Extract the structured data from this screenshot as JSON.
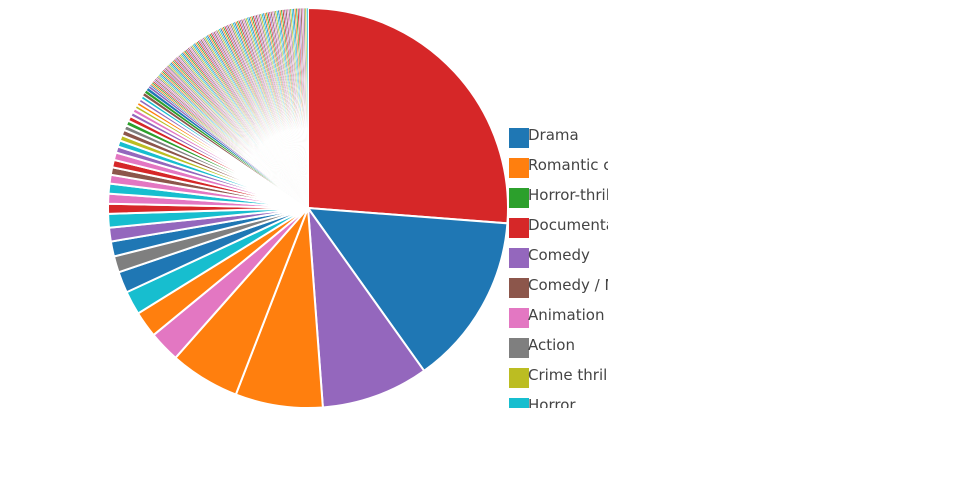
{
  "chart_data": {
    "type": "pie",
    "direction": "clockwise",
    "start": "12 o'clock",
    "slices": [
      {
        "label": "Documentary",
        "value": 26.0,
        "color": "#d62728"
      },
      {
        "label": "Drama",
        "value": 13.8,
        "color": "#1f77b4"
      },
      {
        "label": "Comedy",
        "value": 8.6,
        "color": "#9467bd"
      },
      {
        "label": "Romantic comedy",
        "value": 7.0,
        "color": "#ff7f0e"
      },
      {
        "label": "",
        "value": 5.6,
        "color": "#ff7f0e"
      },
      {
        "label": "",
        "value": 2.5,
        "color": "#e377c2"
      },
      {
        "label": "",
        "value": 2.1,
        "color": "#ff7f0e"
      },
      {
        "label": "",
        "value": 1.9,
        "color": "#17becf"
      },
      {
        "label": "",
        "value": 1.7,
        "color": "#1f77b4"
      },
      {
        "label": "",
        "value": 1.3,
        "color": "#7f7f7f"
      },
      {
        "label": "",
        "value": 1.2,
        "color": "#1f77b4"
      },
      {
        "label": "",
        "value": 1.1,
        "color": "#9467bd"
      },
      {
        "label": "",
        "value": 1.1,
        "color": "#17becf"
      },
      {
        "label": "",
        "value": 0.8,
        "color": "#d62728"
      },
      {
        "label": "",
        "value": 0.8,
        "color": "#e377c2"
      },
      {
        "label": "",
        "value": 0.8,
        "color": "#17becf"
      },
      {
        "label": "",
        "value": 0.7,
        "color": "#e377c2"
      },
      {
        "label": "",
        "value": 0.6,
        "color": "#8c564b"
      },
      {
        "label": "",
        "value": 0.6,
        "color": "#d62728"
      },
      {
        "label": "",
        "value": 0.6,
        "color": "#e377c2"
      },
      {
        "label": "",
        "value": 0.5,
        "color": "#9467bd"
      },
      {
        "label": "",
        "value": 0.5,
        "color": "#17becf"
      },
      {
        "label": "",
        "value": 0.45,
        "color": "#bcbd22"
      },
      {
        "label": "",
        "value": 0.45,
        "color": "#8c564b"
      },
      {
        "label": "",
        "value": 0.4,
        "color": "#7f7f7f"
      },
      {
        "label": "",
        "value": 0.4,
        "color": "#2ca02c"
      },
      {
        "label": "",
        "value": 0.4,
        "color": "#d62728"
      },
      {
        "label": "",
        "value": 0.35,
        "color": "#9467bd"
      },
      {
        "label": "",
        "value": 0.35,
        "color": "#e377c2"
      },
      {
        "label": "",
        "value": 0.3,
        "color": "#bcbd22"
      },
      {
        "label": "",
        "value": 0.3,
        "color": "#ff7f0e"
      },
      {
        "label": "",
        "value": 0.3,
        "color": "#9467bd"
      },
      {
        "label": "",
        "value": 0.3,
        "color": "#17becf"
      },
      {
        "label": "",
        "value": 0.25,
        "color": "#8c564b"
      },
      {
        "label": "",
        "value": 0.25,
        "color": "#2ca02c"
      },
      {
        "label": "",
        "value": 0.25,
        "color": "#1f77b4"
      },
      {
        "label": "",
        "value": 0.2,
        "color": "#9467bd"
      }
    ],
    "tail": {
      "count": 120,
      "value_each": 0.12,
      "colors": [
        "#1f77b4",
        "#ff7f0e",
        "#2ca02c",
        "#d62728",
        "#9467bd",
        "#8c564b",
        "#e377c2",
        "#7f7f7f",
        "#bcbd22",
        "#17becf"
      ]
    },
    "legend": {
      "placement": "right",
      "entries": [
        {
          "label": "Drama",
          "color": "#1f77b4"
        },
        {
          "label": "Romantic comedy",
          "color": "#ff7f0e"
        },
        {
          "label": "Horror-thriller",
          "color": "#2ca02c"
        },
        {
          "label": "Documentary",
          "color": "#d62728"
        },
        {
          "label": "Comedy",
          "color": "#9467bd"
        },
        {
          "label": "Comedy / Musical",
          "color": "#8c564b"
        },
        {
          "label": "Animation",
          "color": "#e377c2"
        },
        {
          "label": "Action",
          "color": "#7f7f7f"
        },
        {
          "label": "Crime thriller",
          "color": "#bcbd22"
        },
        {
          "label": "Horror",
          "color": "#17becf"
        }
      ]
    }
  }
}
